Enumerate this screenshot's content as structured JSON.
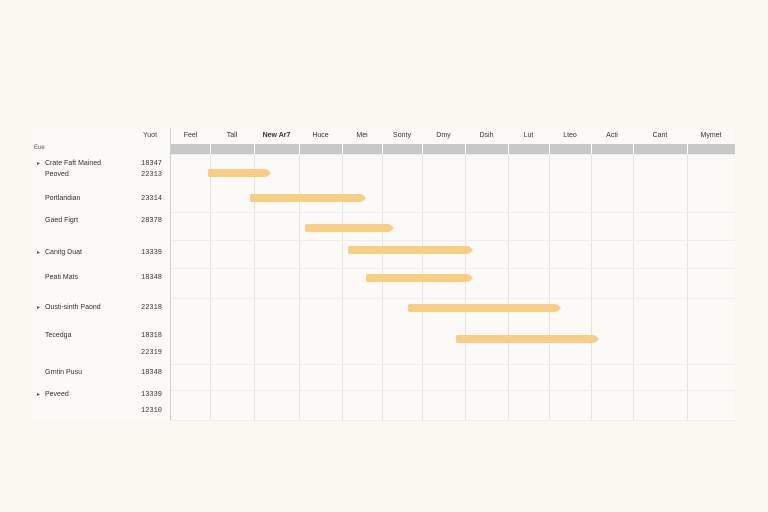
{
  "gantt": {
    "sub_header_label": "Eue",
    "year_label": "Yuot",
    "months": [
      {
        "label": "Feel",
        "bold": false
      },
      {
        "label": "Tall",
        "bold": false
      },
      {
        "label": "New Ar7",
        "bold": true
      },
      {
        "label": "Huce",
        "bold": false
      },
      {
        "label": "Mei",
        "bold": false
      },
      {
        "label": "Sonty",
        "bold": false
      },
      {
        "label": "Dmy",
        "bold": false
      },
      {
        "label": "Dsih",
        "bold": false
      },
      {
        "label": "Lut",
        "bold": false
      },
      {
        "label": "Lteo",
        "bold": false
      },
      {
        "label": "Acti",
        "bold": false
      },
      {
        "label": "Cant",
        "bold": false
      },
      {
        "label": "Mymet",
        "bold": false
      }
    ],
    "rows": [
      {
        "name": "Crate Faft Mained",
        "value": "18347",
        "toggle": "▸"
      },
      {
        "name": "Peoved",
        "value": "22313",
        "toggle": ""
      },
      {
        "name": "Portlandian",
        "value": "23314",
        "toggle": ""
      },
      {
        "name": "Gaed Figrt",
        "value": "28378",
        "toggle": ""
      },
      {
        "name": "Canitg Duat",
        "value": "13339",
        "toggle": "▸"
      },
      {
        "name": "Peati Mats",
        "value": "18348",
        "toggle": ""
      },
      {
        "name": "Ousti-sinth Paond",
        "value": "22318",
        "toggle": "▸"
      },
      {
        "name": "Tecedga",
        "value": "18318",
        "toggle": ""
      },
      {
        "name": "",
        "value": "22319",
        "toggle": ""
      },
      {
        "name": "Grntin Pusu",
        "value": "18348",
        "toggle": ""
      },
      {
        "name": "Peveed",
        "value": "13339",
        "toggle": "▸"
      },
      {
        "name": "",
        "value": "12310",
        "toggle": ""
      }
    ],
    "bars": [
      {
        "task": "Peoved",
        "start": 0.95,
        "end": 2.3
      },
      {
        "task": "Portlandian",
        "start": 1.9,
        "end": 4.5
      },
      {
        "task": "Gaed Figrt",
        "start": 3.15,
        "end": 5.2
      },
      {
        "task": "Canitg Duat",
        "start": 4.15,
        "end": 7.1
      },
      {
        "task": "Peati Mats",
        "start": 4.6,
        "end": 7.1
      },
      {
        "task": "Ousti-sinth Paond",
        "start": 5.65,
        "end": 9.2
      },
      {
        "task": "Tecedga",
        "start": 6.8,
        "end": 10.1
      }
    ],
    "bar_color": "#f8cd86",
    "header_band_color": "#c8c8c8"
  }
}
